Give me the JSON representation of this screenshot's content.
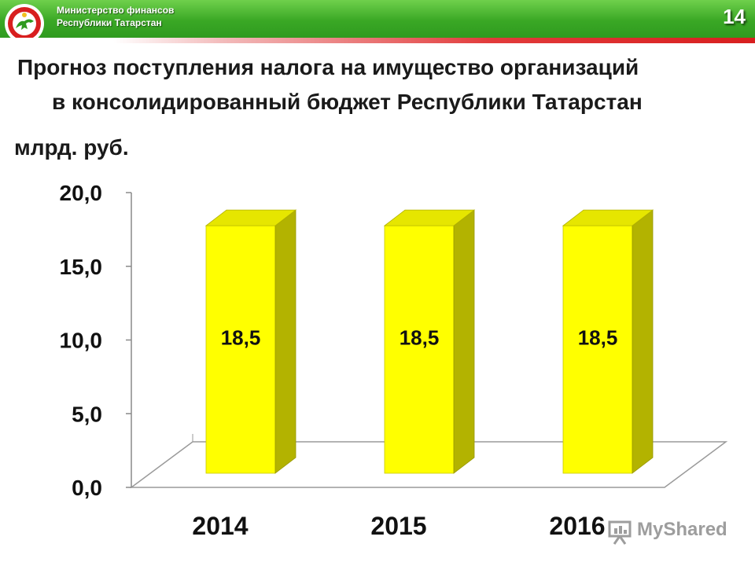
{
  "header": {
    "org_line1": "Министерство финансов",
    "org_line2": "Республики Татарстан",
    "slide_number": "14",
    "colors": {
      "green": "#3aa825",
      "red_stripe": "#d81f1f"
    },
    "logo_icon": "tatarstan-emblem-icon"
  },
  "title": {
    "line1": "Прогноз поступления налога на имущество организаций",
    "line2": "в консолидированный бюджет Республики Татарстан"
  },
  "unit_label": "млрд. руб.",
  "chart_data": {
    "type": "bar",
    "categories": [
      "2014",
      "2015",
      "2016"
    ],
    "values": [
      18.5,
      18.5,
      18.5
    ],
    "data_labels": [
      "18,5",
      "18,5",
      "18,5"
    ],
    "y_ticks": [
      "20,0",
      "15,0",
      "10,0",
      "5,0",
      "0,0"
    ],
    "y_tick_values": [
      20,
      15,
      10,
      5,
      0
    ],
    "ylim": [
      0,
      20
    ],
    "grid": false,
    "legend": "none",
    "bar_color": "#ffff00",
    "style": "3d-columns"
  },
  "watermark": {
    "text": "MyShared",
    "icon": "presentation-board-icon"
  }
}
